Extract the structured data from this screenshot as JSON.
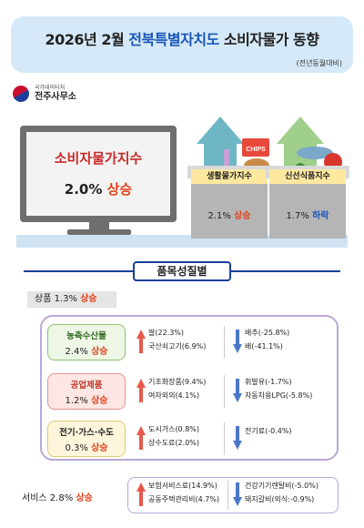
{
  "header": {
    "title_prefix": "2026년 2월 ",
    "title_region": "전북특별자치도",
    "title_suffix": " 소비자물가 동향",
    "subtitle": "(전년동월대비)"
  },
  "logo": {
    "small": "국가데이터처",
    "big": "전주사무소"
  },
  "monitor": {
    "label": "소비자물가지수",
    "value": "2.0%",
    "trend": "상승"
  },
  "boxes": [
    {
      "label": "생활물가지수",
      "value": "2.1%",
      "trend": "상승"
    },
    {
      "label": "신선식품지수",
      "value": "1.7%",
      "trend": "하락"
    }
  ],
  "chips_text": "CHIPS",
  "section_title": "품목성질별",
  "goods": {
    "label": "상품",
    "value": "1.3%",
    "trend": "상승"
  },
  "categories": [
    {
      "name": "농축수산물",
      "value": "2.4%",
      "trend": "상승",
      "up": [
        "쌀(22.3%)",
        "국산쇠고기(6.9%)"
      ],
      "down": [
        "배추(-25.8%)",
        "배(-41.1%)"
      ]
    },
    {
      "name": "공업제품",
      "value": "1.2%",
      "trend": "상승",
      "up": [
        "기초화장품(9.4%)",
        "여자외의(4.1%)"
      ],
      "down": [
        "휘발유(-1.7%)",
        "자동차용LPG(-5.8%)"
      ]
    },
    {
      "name": "전기·가스·수도",
      "value": "0.3%",
      "trend": "상승",
      "up": [
        "도시가스(0.8%)",
        "상수도료(2.0%)"
      ],
      "down": [
        "전기료(-0.4%)"
      ]
    }
  ],
  "service": {
    "label": "서비스",
    "value": "2.8%",
    "trend": "상승",
    "up": [
      "보험서비스료(14.9%)",
      "공동주택관리비(4.7%)"
    ],
    "down": [
      "건강기기렌탈비(-5.0%)",
      "돼지갈비(외식:-0.9%)"
    ]
  },
  "colors": {
    "up": "#e0421b",
    "down": "#1a56b8",
    "accent": "#1a3f9b"
  }
}
